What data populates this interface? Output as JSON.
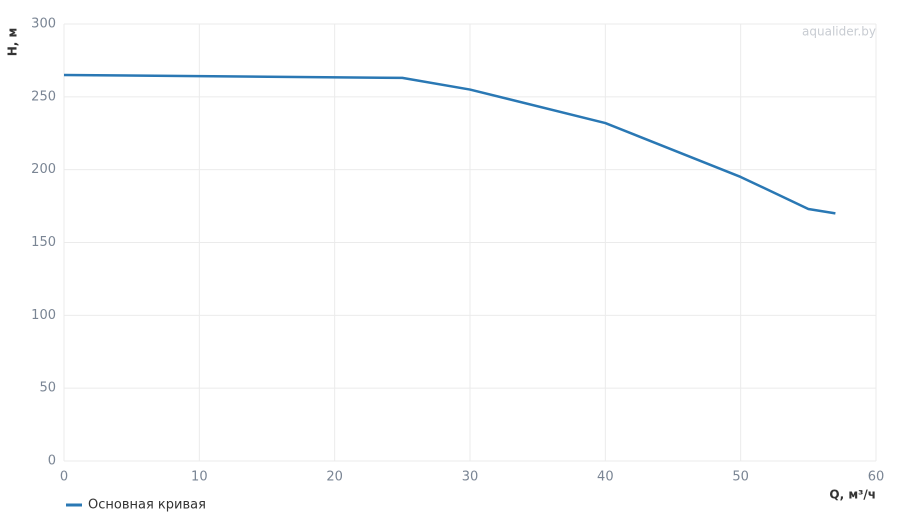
{
  "chart_data": {
    "type": "line",
    "x_label": "Q, м³/ч",
    "y_label": "H, м",
    "watermark": "aqualider.by",
    "x": [
      0,
      25,
      30,
      40,
      50,
      55,
      57
    ],
    "series": [
      {
        "name": "Основная кривая",
        "color": "#2a78b4",
        "values": [
          265,
          263,
          255,
          232,
          195,
          173,
          170
        ]
      }
    ],
    "xlim": [
      0,
      60
    ],
    "xticks": [
      0,
      10,
      20,
      30,
      40,
      50,
      60
    ],
    "ylim": [
      0,
      300
    ],
    "yticks": [
      0,
      50,
      100,
      150,
      200,
      250,
      300
    ],
    "grid": true,
    "legend": "bottom-left"
  }
}
